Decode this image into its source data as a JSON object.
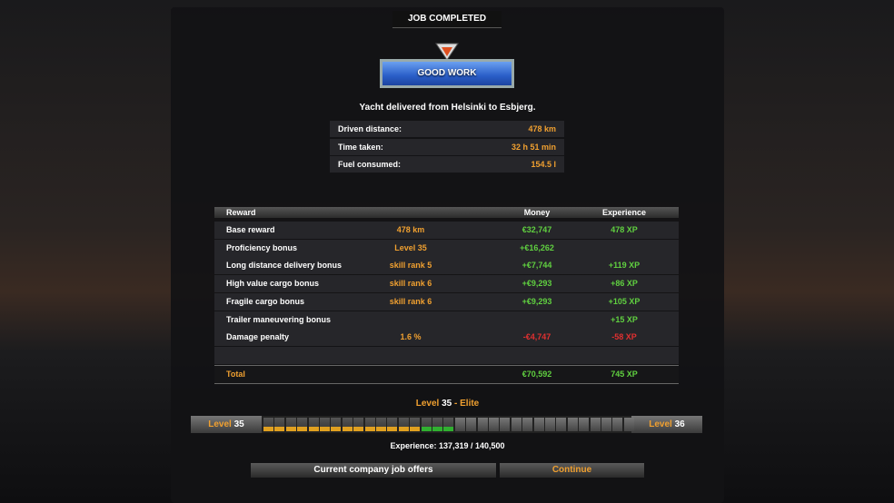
{
  "header": {
    "title": "JOB COMPLETED",
    "badge": "GOOD WORK"
  },
  "summary": "Yacht delivered from Helsinki to Esbjerg.",
  "stats": [
    {
      "label": "Driven distance:",
      "value": "478 km"
    },
    {
      "label": "Time taken:",
      "value": "32 h 51 min"
    },
    {
      "label": "Fuel consumed:",
      "value": "154.5 l"
    }
  ],
  "table": {
    "columns": {
      "reward": "Reward",
      "money": "Money",
      "xp": "Experience"
    },
    "rows": [
      {
        "name": "Base reward",
        "detail": "478 km",
        "money": "€32,747",
        "xp": "478 XP"
      },
      {
        "name": "Proficiency bonus",
        "detail": "Level 35",
        "money": "+€16,262"
      },
      {
        "name": "Long distance delivery bonus",
        "detail": "skill rank 5",
        "money": "+€7,744",
        "xp": "+119 XP"
      },
      {
        "name": "High value cargo bonus",
        "detail": "skill rank 6",
        "money": "+€9,293",
        "xp": "+86 XP"
      },
      {
        "name": "Fragile cargo bonus",
        "detail": "skill rank 6",
        "money": "+€9,293",
        "xp": "+105 XP"
      },
      {
        "name": "Trailer maneuvering bonus",
        "xp": "+15 XP"
      },
      {
        "name": "Damage penalty",
        "detail": "1.6 %",
        "money": "-€4,747",
        "xp": "-58 XP",
        "negative": true
      }
    ],
    "total": {
      "label": "Total",
      "money": "€70,592",
      "xp": "745 XP"
    }
  },
  "level": {
    "word": "Level",
    "number": "35",
    "rank": "- Elite",
    "next": "36"
  },
  "experience": "Experience: 137,319 / 140,500",
  "buttons": {
    "offers": "Current company job offers",
    "continue": "Continue"
  }
}
